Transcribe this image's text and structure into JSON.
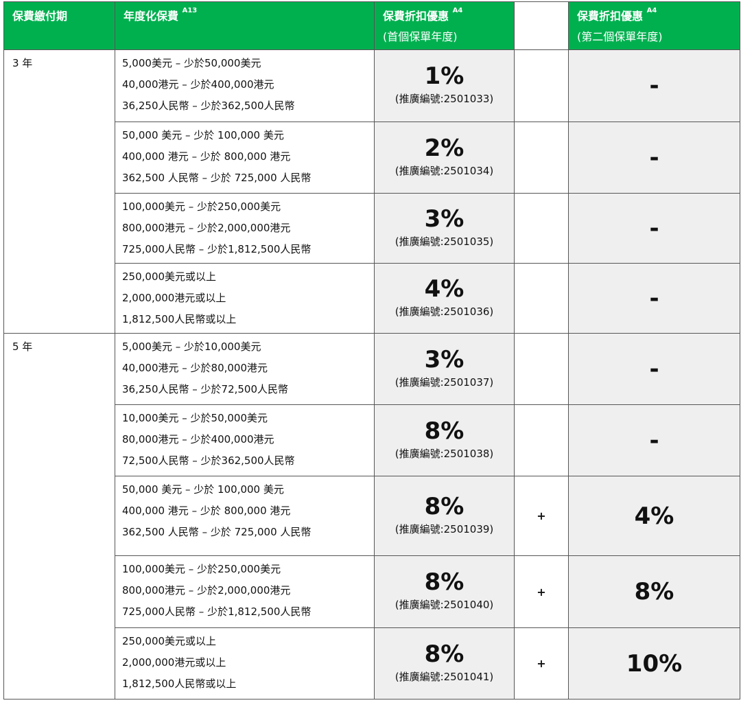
{
  "header": {
    "col1": "保費繳付期",
    "col2": "年度化保費",
    "col2_sup": "A13",
    "col3": "保費折扣優惠",
    "col3_sup": "A4",
    "col3_sub": "(首個保單年度)",
    "col5": "保費折扣優惠",
    "col5_sup": "A4",
    "col5_sub": "(第二個保單年度)"
  },
  "colors": {
    "header_bg": "#00b04f",
    "cell_grey": "#efefef"
  },
  "groups": [
    {
      "term": "3 年",
      "rows": [
        {
          "lines": [
            "5,000美元 – 少於50,000美元",
            "40,000港元 – 少於400,000港元",
            "36,250人民幣 – 少於362,500人民幣"
          ],
          "pct": "1%",
          "code": "(推廣編號:2501033)",
          "plus": "",
          "second": "-"
        },
        {
          "lines": [
            "50,000 美元 – 少於 100,000 美元",
            "400,000 港元 – 少於 800,000 港元",
            "362,500 人民幣 – 少於 725,000 人民幣"
          ],
          "pct": "2%",
          "code": "(推廣編號:2501034)",
          "plus": "",
          "second": "-"
        },
        {
          "lines": [
            "100,000美元 – 少於250,000美元",
            "800,000港元 – 少於2,000,000港元",
            "725,000人民幣 – 少於1,812,500人民幣"
          ],
          "pct": "3%",
          "code": "(推廣編號:2501035)",
          "plus": "",
          "second": "-"
        },
        {
          "lines": [
            "250,000美元或以上",
            "2,000,000港元或以上",
            "1,812,500人民幣或以上"
          ],
          "pct": "4%",
          "code": "(推廣編號:2501036)",
          "plus": "",
          "second": "-"
        }
      ]
    },
    {
      "term": "5 年",
      "rows": [
        {
          "lines": [
            "5,000美元 – 少於10,000美元",
            "40,000港元 – 少於80,000港元",
            "36,250人民幣 – 少於72,500人民幣"
          ],
          "pct": "3%",
          "code": "(推廣編號:2501037)",
          "plus": "",
          "second": "-"
        },
        {
          "lines": [
            "10,000美元 – 少於50,000美元",
            "80,000港元 – 少於400,000港元",
            "72,500人民幣 – 少於362,500人民幣"
          ],
          "pct": "8%",
          "code": "(推廣編號:2501038)",
          "plus": "",
          "second": "-"
        },
        {
          "lines": [
            "50,000 美元 – 少於 100,000 美元",
            "400,000 港元 – 少於 800,000 港元",
            "362,500 人民幣 – 少於 725,000 人民幣"
          ],
          "pct": "8%",
          "code": "(推廣編號:2501039)",
          "plus": "+",
          "second": "4%"
        },
        {
          "lines": [
            "100,000美元 – 少於250,000美元",
            "800,000港元 – 少於2,000,000港元",
            "725,000人民幣 – 少於1,812,500人民幣"
          ],
          "pct": "8%",
          "code": "(推廣編號:2501040)",
          "plus": "+",
          "second": "8%"
        },
        {
          "lines": [
            "250,000美元或以上",
            "2,000,000港元或以上",
            "1,812,500人民幣或以上"
          ],
          "pct": "8%",
          "code": "(推廣編號:2501041)",
          "plus": "+",
          "second": "10%"
        }
      ]
    }
  ]
}
